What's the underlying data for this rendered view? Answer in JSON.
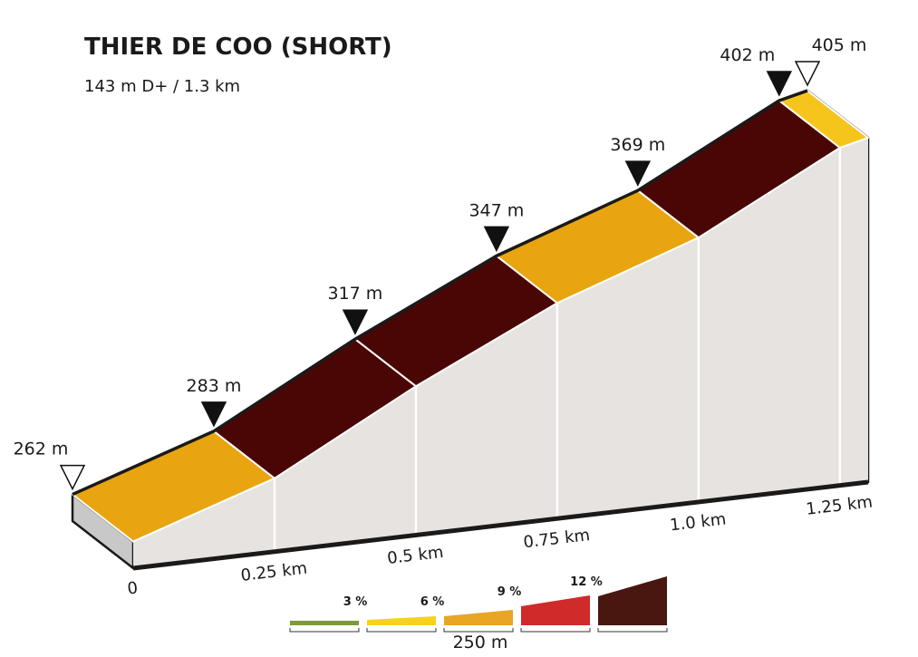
{
  "chart_data": {
    "type": "elevation-profile",
    "title": "THIER DE COO (SHORT)",
    "subtitle": "143 m D+ / 1.3 km",
    "x": [
      0,
      0.25,
      0.5,
      0.75,
      1,
      1.25,
      1.3
    ],
    "values": [
      262,
      283,
      317,
      347,
      369,
      402,
      405
    ],
    "value_labels": [
      "262 m",
      "283 m",
      "317 m",
      "347 m",
      "369 m",
      "402 m",
      "405 m"
    ],
    "segment_colors": [
      "#e8a510",
      "#4a0604",
      "#4a0604",
      "#e8a510",
      "#4a0604",
      "#f6c51c"
    ],
    "xlim": [
      0,
      1.3
    ],
    "ylim": [
      250,
      405
    ],
    "xticks": [
      0,
      {
        "value": 0.25,
        "label": "0.25 km"
      },
      {
        "value": 0.5,
        "label": "0.5 km"
      },
      {
        "value": 0.75,
        "label": "0.75 km"
      },
      {
        "value": 1,
        "label": "1.0 km"
      },
      {
        "value": 1.25,
        "label": "1.25 km"
      }
    ],
    "legend": {
      "labels": [
        "3 %",
        "6 %",
        "9 %",
        "12 %"
      ],
      "colors": [
        "#7d9a3c",
        "#f6d21e",
        "#e8a624",
        "#d02a2a",
        "#4a1610"
      ],
      "scale_label": "250 m"
    }
  }
}
